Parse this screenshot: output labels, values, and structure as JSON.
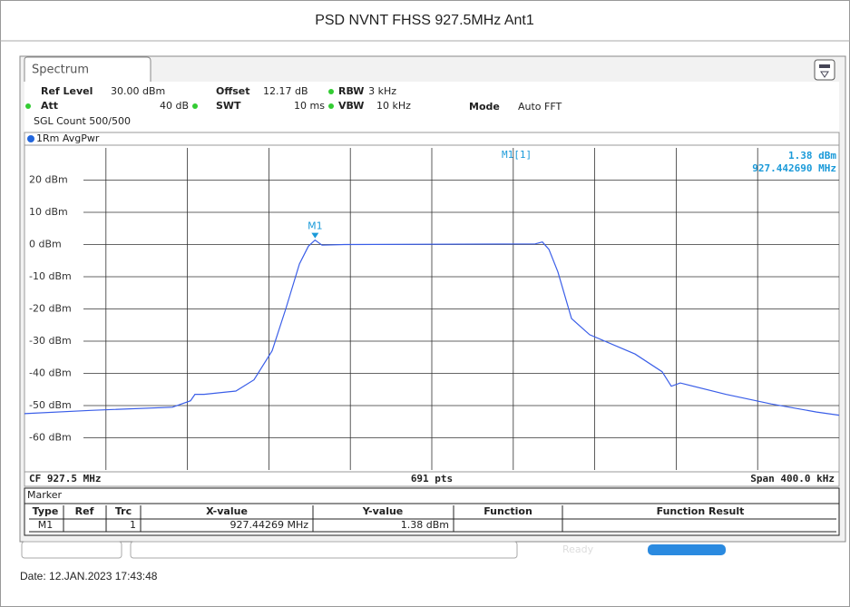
{
  "title": "PSD NVNT FHSS 927.5MHz Ant1",
  "tab": "Spectrum",
  "settings_row1": [
    {
      "label": "Ref Level",
      "value": "30.00 dBm"
    },
    {
      "label": "Offset",
      "value": "12.17 dB"
    },
    {
      "label": "RBW",
      "value": "3 kHz"
    }
  ],
  "settings_row2": [
    {
      "label": "Att",
      "value": "40 dB"
    },
    {
      "label": "SWT",
      "value": "10 ms"
    },
    {
      "label": "VBW",
      "value": "10 kHz"
    },
    {
      "label": "Mode",
      "value": "Auto FFT"
    }
  ],
  "sweep_count": "SGL Count 500/500",
  "trace_label": "1Rm AvgPwr",
  "chart_data": {
    "type": "line",
    "x": [
      927.3,
      927.3325,
      927.3726,
      927.3815,
      927.3837,
      927.3882,
      927.4038,
      927.4127,
      927.4216,
      927.4283,
      927.435,
      927.4394,
      927.44269,
      927.4461,
      927.4572,
      927.5508,
      927.5543,
      927.5575,
      927.5619,
      927.5686,
      927.5775,
      927.5998,
      927.6131,
      927.6176,
      927.622,
      927.6443,
      927.6666,
      927.6889,
      927.7
    ],
    "series": [
      {
        "name": "1Rm AvgPwr",
        "color": "#3a5ee8",
        "values": [
          -52.5,
          -51.5,
          -50.5,
          -48.5,
          -46.5,
          -46.5,
          -45.5,
          -42,
          -33,
          -20,
          -6,
          -0.5,
          1.38,
          -0.2,
          0,
          0.2,
          0.8,
          -1.5,
          -8.5,
          -23,
          -28,
          -34,
          -39.5,
          -44,
          -43,
          -46.5,
          -49.5,
          -52,
          -53
        ]
      }
    ],
    "xlim": [
      927.3,
      927.7
    ],
    "ylim": [
      -70,
      30
    ],
    "yticks": [
      {
        "value": -60,
        "label": "-60 dBm"
      },
      {
        "value": -50,
        "label": "-50 dBm"
      },
      {
        "value": -40,
        "label": "-40 dBm"
      },
      {
        "value": -30,
        "label": "-30 dBm"
      },
      {
        "value": -20,
        "label": "-20 dBm"
      },
      {
        "value": -10,
        "label": "-10 dBm"
      },
      {
        "value": 0,
        "label": "0 dBm"
      },
      {
        "value": 10,
        "label": "10 dBm"
      },
      {
        "value": 20,
        "label": "20 dBm"
      }
    ],
    "grid": true,
    "marker": {
      "label": "M1",
      "x": 927.44269,
      "y": 1.38
    },
    "marker_readout": {
      "name": "M1[1]",
      "level": "1.38 dBm",
      "frequency": "927.442690 MHz"
    },
    "center": "CF 927.5 MHz",
    "points": "691 pts",
    "span": "Span 400.0 kHz"
  },
  "marker_table": {
    "title": "Marker",
    "columns": [
      "Type",
      "Ref",
      "Trc",
      "X-value",
      "Y-value",
      "Function",
      "Function Result"
    ],
    "row": {
      "type": "M1",
      "trc": "1",
      "x_value": "927.44269 MHz",
      "y_value": "1.38 dBm"
    }
  },
  "status": "Ready",
  "date": "Date: 12.JAN.2023  17:43:48"
}
